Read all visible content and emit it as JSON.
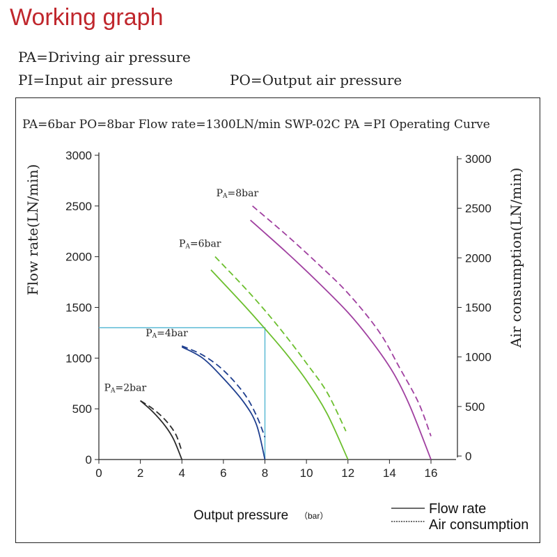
{
  "page": {
    "title": "Working graph",
    "definitions": {
      "pa": "PA=Driving air pressure",
      "pi": "PI=Input air pressure",
      "po": "PO=Output air pressure"
    },
    "chart_header": "PA=6bar PO=8bar  Flow rate=1300LN/min SWP-02C PA =PI Operating Curve"
  },
  "chart_data": {
    "type": "line",
    "xlabel": "Output pressure",
    "xlabel_unit": "（bar）",
    "ylabel_left": "Flow rate(LN/min)",
    "ylabel_right": "Air consumption(LN/min)",
    "xlim": [
      0,
      16
    ],
    "ylim": [
      0,
      3000
    ],
    "x_ticks": [
      "0",
      "2",
      "4",
      "6",
      "8",
      "10",
      "12",
      "14",
      "16"
    ],
    "y_ticks_left": [
      "0",
      "500",
      "1000",
      "1500",
      "2000",
      "2500",
      "3000"
    ],
    "y_ticks_right": [
      "0",
      "500",
      "1000",
      "1500",
      "2000",
      "2500",
      "3000"
    ],
    "legend": {
      "flow": "Flow rate",
      "air": "Air consumption",
      "position": "bottom-right"
    },
    "series": [
      {
        "label": "PA=2bar",
        "color": "#2b2b2b",
        "flow": [
          [
            2,
            580
          ],
          [
            2.6,
            470
          ],
          [
            3.2,
            330
          ],
          [
            3.6,
            200
          ],
          [
            4,
            0
          ]
        ],
        "air": [
          [
            2,
            580
          ],
          [
            2.6,
            500
          ],
          [
            3.2,
            390
          ],
          [
            3.7,
            250
          ],
          [
            4,
            80
          ]
        ]
      },
      {
        "label": "PA=4bar",
        "color": "#1f3f8f",
        "flow": [
          [
            4,
            1110
          ],
          [
            5,
            1000
          ],
          [
            6,
            800
          ],
          [
            7,
            560
          ],
          [
            7.6,
            340
          ],
          [
            8,
            0
          ]
        ],
        "air": [
          [
            4,
            1120
          ],
          [
            5,
            1030
          ],
          [
            6,
            880
          ],
          [
            7,
            650
          ],
          [
            7.6,
            430
          ],
          [
            8,
            220
          ]
        ]
      },
      {
        "label": "PA=6bar",
        "color": "#6cbf2e",
        "flow": [
          [
            5.4,
            1870
          ],
          [
            7,
            1520
          ],
          [
            8,
            1290
          ],
          [
            9,
            1050
          ],
          [
            10,
            780
          ],
          [
            11,
            450
          ],
          [
            12,
            0
          ]
        ],
        "air": [
          [
            5.6,
            2000
          ],
          [
            7,
            1700
          ],
          [
            8,
            1470
          ],
          [
            9,
            1220
          ],
          [
            10,
            950
          ],
          [
            11,
            660
          ],
          [
            11.9,
            280
          ]
        ]
      },
      {
        "label": "PA=8bar",
        "color": "#a040a0",
        "flow": [
          [
            7.3,
            2360
          ],
          [
            9,
            2050
          ],
          [
            10.5,
            1760
          ],
          [
            12,
            1450
          ],
          [
            13.2,
            1150
          ],
          [
            14.2,
            850
          ],
          [
            15,
            520
          ],
          [
            16,
            0
          ]
        ],
        "air": [
          [
            7.4,
            2500
          ],
          [
            9,
            2220
          ],
          [
            10.5,
            1940
          ],
          [
            12,
            1640
          ],
          [
            13.5,
            1260
          ],
          [
            14.5,
            900
          ],
          [
            15.4,
            560
          ],
          [
            16,
            230
          ]
        ]
      }
    ],
    "operating_point": {
      "x": 8,
      "y": 1300,
      "color": "#5bbad5"
    }
  }
}
